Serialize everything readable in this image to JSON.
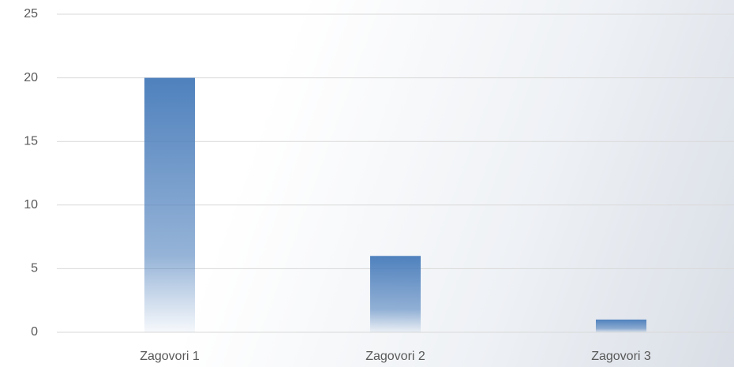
{
  "chart_data": {
    "type": "bar",
    "categories": [
      "Zagovori 1",
      "Zagovori 2",
      "Zagovori 3"
    ],
    "values": [
      20,
      6,
      1
    ],
    "color": "#4f81bd",
    "ylim": [
      0,
      25
    ],
    "yticks": [
      0,
      5,
      10,
      15,
      20,
      25
    ],
    "grid": true
  }
}
